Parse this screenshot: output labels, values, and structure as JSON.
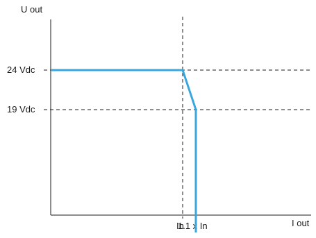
{
  "chart_data": {
    "type": "line",
    "title": "",
    "xlabel": "I out",
    "ylabel": "U out",
    "x_ticks": [
      {
        "key": "in",
        "label": "In",
        "value": 1.0
      },
      {
        "key": "in11",
        "label": "1.1 x In",
        "value": 1.1
      }
    ],
    "y_ticks": [
      {
        "key": "v24",
        "label": "24 Vdc",
        "value": 24
      },
      {
        "key": "v19",
        "label": "19 Vdc",
        "value": 19
      }
    ],
    "series": [
      {
        "color": "#3aa6dc",
        "points": [
          {
            "x": 0,
            "y": 24
          },
          {
            "x": 1.0,
            "y": 24
          },
          {
            "x": 1.1,
            "y": 19
          },
          {
            "x": 1.1,
            "y": 0
          }
        ]
      }
    ],
    "reference_lines": {
      "vertical": [
        1.0,
        1.1
      ],
      "horizontal": [
        24,
        19
      ]
    },
    "colors": {
      "axis": "#1a1a1a",
      "reference": "#1a1a1a",
      "series": "#3aa6dc"
    },
    "grid": false
  }
}
